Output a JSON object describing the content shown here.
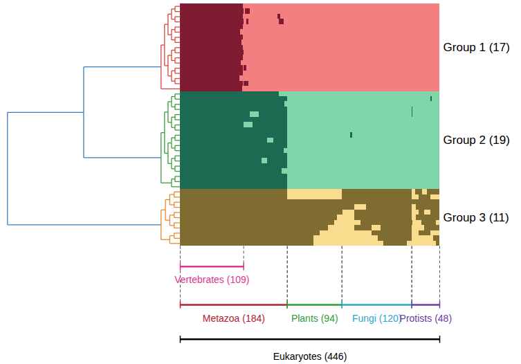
{
  "chart_data": {
    "type": "heatmap",
    "tick_labels": false,
    "xlim": [
      0,
      446
    ],
    "dendrogram_color": "#3b7bbf",
    "groups": [
      {
        "label": "Group 1 (17)",
        "rows": 17,
        "color": "#f47f80",
        "present_color": "#7e1b30",
        "dendrogram_color": "#d8453f",
        "cells": [
          [
            [
              0,
              108
            ]
          ],
          [
            [
              0,
              110
            ],
            [
              112,
              120
            ]
          ],
          [
            [
              0,
              108
            ],
            [
              168,
              172
            ]
          ],
          [
            [
              0,
              109
            ],
            [
              114,
              118
            ],
            [
              170,
              178
            ]
          ],
          [
            [
              0,
              108
            ]
          ],
          [
            [
              0,
              104
            ]
          ],
          [
            [
              0,
              108
            ]
          ],
          [
            [
              0,
              106
            ]
          ],
          [
            [
              0,
              108
            ]
          ],
          [
            [
              0,
              109
            ]
          ],
          [
            [
              0,
              108
            ]
          ],
          [
            [
              0,
              105
            ]
          ],
          [
            [
              0,
              108
            ],
            [
              110,
              114
            ]
          ],
          [
            [
              0,
              108
            ]
          ],
          [
            [
              0,
              102
            ]
          ],
          [
            [
              0,
              108
            ],
            [
              110,
              118
            ]
          ],
          [
            [
              0,
              107
            ]
          ]
        ]
      },
      {
        "label": "Group 2 (19)",
        "rows": 19,
        "color": "#7fd6a8",
        "present_color": "#1b6a51",
        "dendrogram_color": "#3c9c3c",
        "cells": [
          [
            [
              0,
              170
            ]
          ],
          [
            [
              0,
              184
            ],
            [
              430,
              433
            ]
          ],
          [
            [
              0,
              180
            ]
          ],
          [
            [
              0,
              184
            ],
            [
              398,
              400
            ]
          ],
          [
            [
              0,
              120
            ],
            [
              135,
              184
            ],
            [
              398,
              400
            ]
          ],
          [
            [
              0,
              184
            ]
          ],
          [
            [
              0,
              110
            ],
            [
              125,
              184
            ]
          ],
          [
            [
              0,
              184
            ]
          ],
          [
            [
              0,
              184
            ],
            [
              293,
              296
            ]
          ],
          [
            [
              0,
              150
            ],
            [
              160,
              184
            ]
          ],
          [
            [
              0,
              184
            ]
          ],
          [
            [
              0,
              178
            ]
          ],
          [
            [
              0,
              184
            ]
          ],
          [
            [
              0,
              140
            ],
            [
              150,
              184
            ]
          ],
          [
            [
              0,
              184
            ]
          ],
          [
            [
              0,
              175
            ]
          ],
          [
            [
              0,
              184
            ]
          ],
          [
            [
              0,
              184
            ]
          ],
          [
            [
              0,
              184
            ]
          ]
        ]
      },
      {
        "label": "Group 3 (11)",
        "rows": 11,
        "color": "#f9dc8e",
        "present_color": "#7f6c30",
        "dendrogram_color": "#e8892b",
        "cells": [
          [
            [
              0,
              184
            ],
            [
              278,
              398
            ],
            [
              404,
              416
            ],
            [
              425,
              446
            ]
          ],
          [
            [
              0,
              184
            ],
            [
              278,
              398
            ],
            [
              410,
              430
            ]
          ],
          [
            [
              0,
              446
            ]
          ],
          [
            [
              0,
              300
            ],
            [
              320,
              398
            ],
            [
              405,
              446
            ]
          ],
          [
            [
              0,
              280
            ],
            [
              300,
              398
            ],
            [
              410,
              420
            ],
            [
              430,
              446
            ]
          ],
          [
            [
              0,
              270
            ],
            [
              300,
              398
            ],
            [
              406,
              446
            ]
          ],
          [
            [
              0,
              265
            ],
            [
              310,
              400
            ],
            [
              415,
              440
            ]
          ],
          [
            [
              0,
              255
            ],
            [
              300,
              330
            ],
            [
              345,
              398
            ],
            [
              420,
              446
            ]
          ],
          [
            [
              0,
              240
            ],
            [
              330,
              398
            ],
            [
              410,
              430
            ]
          ],
          [
            [
              0,
              230
            ],
            [
              340,
              398
            ],
            [
              435,
              446
            ]
          ],
          [
            [
              0,
              230
            ],
            [
              350,
              390
            ],
            [
              440,
              446
            ]
          ]
        ]
      }
    ],
    "clade_rows": [
      [
        {
          "label": "Vertebrates (109)",
          "start": 0,
          "count": 109,
          "color": "#e0338a"
        }
      ],
      [
        {
          "label": "Metazoa (184)",
          "start": 0,
          "count": 184,
          "color": "#b5202a"
        },
        {
          "label": "Plants (94)",
          "start": 184,
          "count": 94,
          "color": "#2c9c3a"
        },
        {
          "label": "Fungi (120)",
          "start": 278,
          "count": 120,
          "color": "#2aa8c9"
        },
        {
          "label": "Protists (48)",
          "start": 398,
          "count": 48,
          "color": "#6a3aa2"
        }
      ],
      [
        {
          "label": "Eukaryotes (446)",
          "start": 0,
          "count": 446,
          "color": "#000000"
        }
      ]
    ]
  }
}
